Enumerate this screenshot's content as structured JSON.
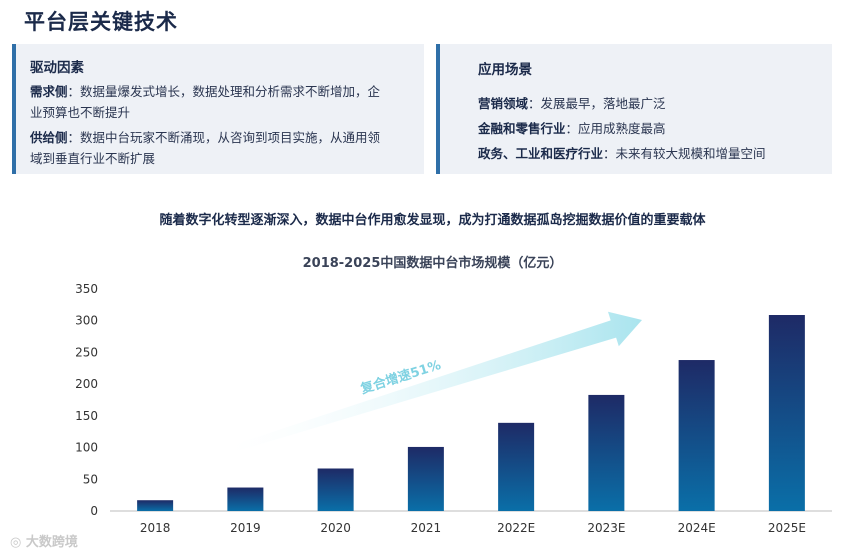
{
  "page_title": "平台层关键技术",
  "left_panel": {
    "title": "驱动因素",
    "demand_label": "需求侧",
    "demand_text": "：数据量爆发式增长，数据处理和分析需求不断增加，企业预算也不断提升",
    "supply_label": "供给侧",
    "supply_text": "：数据中台玩家不断涌现，从咨询到项目实施，从通用领域到垂直行业不断扩展"
  },
  "right_panel": {
    "title": "应用场景",
    "items": [
      {
        "label": "营销领域",
        "text": "：发展最早，落地最广泛"
      },
      {
        "label": "金融和零售行业",
        "text": "：应用成熟度最高"
      },
      {
        "label": "政务、工业和医疗行业",
        "text": "：未来有较大规模和增量空间"
      }
    ]
  },
  "headline": "随着数字化转型逐渐深入，数据中台作用愈发显现，成为打通数据孤岛挖掘数据价值的重要载体",
  "watermark": "大数跨境",
  "chart_data": {
    "type": "bar",
    "title": "2018-2025中国数据中台市场规模（亿元）",
    "categories": [
      "2018",
      "2019",
      "2020",
      "2021",
      "2022E",
      "2023E",
      "2024E",
      "2025E"
    ],
    "values": [
      17,
      37,
      67,
      101,
      139,
      183,
      238,
      309
    ],
    "ylim": [
      0,
      350
    ],
    "yticks": [
      0,
      50,
      100,
      150,
      200,
      250,
      300,
      350
    ],
    "annotation": "复合增速51%",
    "colors": {
      "bar_top": "#1e2a66",
      "bar_bottom": "#0a6fa8",
      "arrow": "#a9e4ee",
      "annotation": "#7fd2e2"
    }
  }
}
